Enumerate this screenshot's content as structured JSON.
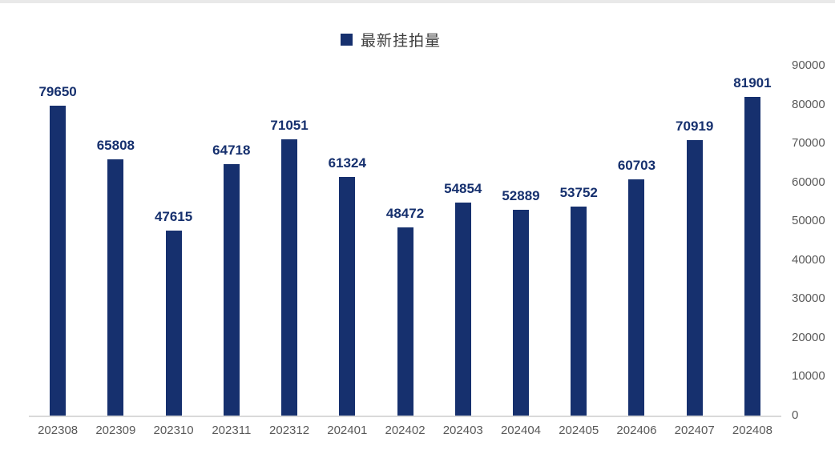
{
  "legend": {
    "label": "最新挂拍量",
    "marker_color": "#16306E"
  },
  "chart_data": {
    "type": "bar",
    "title": "",
    "xlabel": "",
    "ylabel": "",
    "series_name": "最新挂拍量",
    "categories": [
      "202308",
      "202309",
      "202310",
      "202311",
      "202312",
      "202401",
      "202402",
      "202403",
      "202404",
      "202405",
      "202406",
      "202407",
      "202408"
    ],
    "values": [
      79650,
      65808,
      47615,
      64718,
      71051,
      61324,
      48472,
      54854,
      52889,
      53752,
      60703,
      70919,
      81901
    ],
    "value_labels_shown": true,
    "ylim": [
      0,
      90000
    ],
    "yticks": [
      0,
      10000,
      20000,
      30000,
      40000,
      50000,
      60000,
      70000,
      80000,
      90000
    ],
    "y_axis_side": "right",
    "legend_position": "top",
    "grid": false,
    "bar_color": "#16306E",
    "value_label_color": "#16306E",
    "axis_text_color": "#595959",
    "axis_line_color": "#d9d9d9"
  }
}
